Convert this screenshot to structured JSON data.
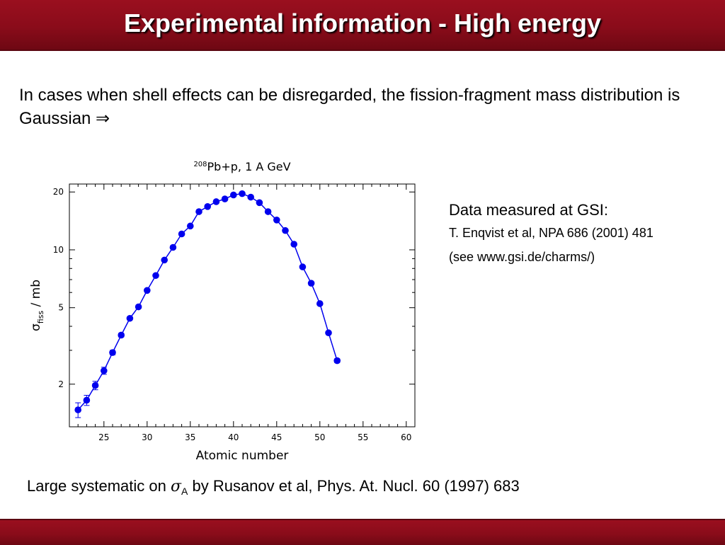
{
  "slide": {
    "title": "Experimental information - High energy",
    "intro_text": "In cases when shell effects can be disregarded, the fission-fragment mass distribution is Gaussian ⇒",
    "side_notes": {
      "heading": "Data measured at GSI:",
      "reference": "T. Enqvist et al, NPA 686 (2001) 481",
      "website": "(see www.gsi.de/charms/)"
    },
    "footer": {
      "prefix": "Large systematic on ",
      "symbol": "σ",
      "subscript": "A",
      "suffix": " by Rusanov et al, Phys. At. Nucl. 60 (1997) 683"
    },
    "colors": {
      "bar": "#8a0c1a",
      "data": "#0000ee"
    }
  },
  "chart_data": {
    "type": "scatter",
    "title": "208Pb+p, 1 A GeV",
    "title_superscript": "208",
    "title_rest": "Pb+p, 1 A GeV",
    "xlabel": "Atomic number",
    "ylabel_symbol": "σ",
    "ylabel_subscript": "fiss",
    "ylabel_unit": "/ mb",
    "xscale": "linear",
    "yscale": "log",
    "xlim": [
      21,
      61
    ],
    "ylim": [
      1.2,
      22
    ],
    "xticks": [
      25,
      30,
      35,
      40,
      45,
      50,
      55,
      60
    ],
    "yticks": [
      2,
      5,
      10,
      20
    ],
    "grid": false,
    "connected_line": true,
    "error_bars": true,
    "series": [
      {
        "x": [
          22,
          23,
          24,
          25,
          26,
          27,
          28,
          29,
          30,
          31,
          32,
          33,
          34,
          35,
          36,
          37,
          38,
          39,
          40,
          41,
          42,
          43,
          44,
          45,
          46,
          47,
          48,
          49,
          50,
          51,
          52
        ],
        "y": [
          1.47,
          1.65,
          1.97,
          2.35,
          2.92,
          3.6,
          4.4,
          5.05,
          6.15,
          7.35,
          8.85,
          10.3,
          12.1,
          13.3,
          15.8,
          16.8,
          17.8,
          18.4,
          19.3,
          19.6,
          18.8,
          17.6,
          15.8,
          14.3,
          12.6,
          10.7,
          8.15,
          6.7,
          5.25,
          3.7,
          2.65
        ],
        "yerr": [
          0.13,
          0.1,
          0.1,
          0.1,
          0.08,
          0.08,
          0.08,
          0.08,
          0.08,
          0.08,
          0.1,
          0.1,
          0.1,
          0.1,
          0.12,
          0.12,
          0.12,
          0.12,
          0.15,
          0.15,
          0.15,
          0.12,
          0.12,
          0.12,
          0.1,
          0.1,
          0.08,
          0.08,
          0.08,
          0.06,
          0.06
        ]
      }
    ]
  }
}
